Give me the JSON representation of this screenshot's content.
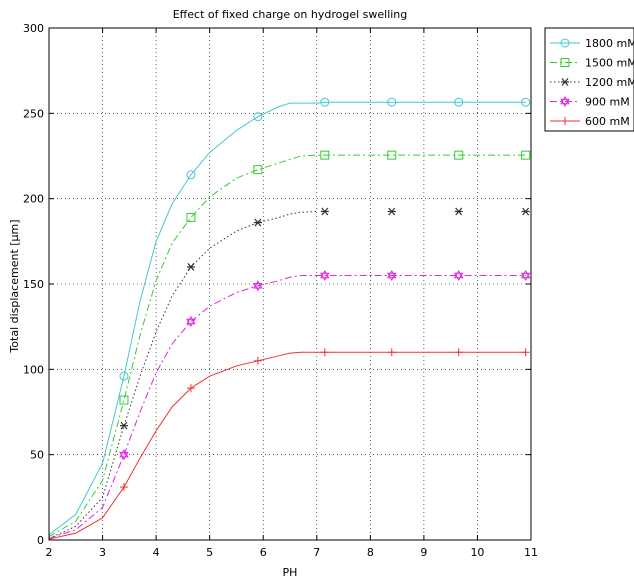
{
  "chart_data": {
    "type": "line",
    "title": "Effect of fixed charge on hydrogel swelling",
    "xlabel": "PH",
    "ylabel": "Total displacement [μm]",
    "xlim": [
      2,
      11
    ],
    "ylim": [
      0,
      300
    ],
    "xticks": [
      2,
      3,
      4,
      5,
      6,
      7,
      8,
      9,
      10,
      11
    ],
    "yticks": [
      0,
      50,
      100,
      150,
      200,
      250,
      300
    ],
    "grid": true,
    "grid_style": "dotted",
    "legend_position": "outside-top-right",
    "x": [
      2,
      2.5,
      3,
      3.4,
      3.7,
      4,
      4.3,
      4.65,
      5,
      5.5,
      5.9,
      6.3,
      6.5,
      6.7,
      7,
      7.15,
      8.4,
      9.65,
      10.9
    ],
    "markers_x": [
      3.4,
      4.65,
      5.9,
      7.15,
      8.4,
      9.65,
      10.9
    ],
    "series": [
      {
        "name": "1800 mM",
        "color": "#44c8cc",
        "line_style": "solid",
        "marker": "circle",
        "values": [
          3,
          15,
          45,
          96,
          140,
          175,
          197,
          214,
          227,
          240,
          248,
          254,
          256,
          256,
          256,
          256.5,
          256.5,
          256.5,
          256.5
        ]
      },
      {
        "name": "1500 mM",
        "color": "#33cc33",
        "line_style": "dashdot",
        "marker": "square",
        "values": [
          2,
          11,
          35,
          82,
          120,
          152,
          174,
          189,
          201,
          212,
          217,
          221,
          223,
          225,
          225.5,
          225.5,
          225.5,
          225.5,
          225.5
        ]
      },
      {
        "name": "1200 mM",
        "color": "#333333",
        "line_style": "dotted",
        "marker": "asterisk",
        "values": [
          1,
          8,
          25,
          67,
          96,
          122,
          143,
          160,
          171,
          181,
          186,
          189,
          191,
          192,
          192.5,
          192.5,
          192.5,
          192.5,
          192.5
        ]
      },
      {
        "name": "900 mM",
        "color": "#e024e0",
        "line_style": "dashdot",
        "marker": "hexagram",
        "values": [
          1,
          6,
          19,
          50,
          75,
          98,
          115,
          128,
          137,
          145,
          149,
          152,
          154,
          155,
          155,
          155,
          155,
          155,
          155
        ]
      },
      {
        "name": "600 mM",
        "color": "#ee3333",
        "line_style": "solid",
        "marker": "plus",
        "values": [
          0.5,
          4,
          13,
          31,
          48,
          64,
          78,
          89,
          96,
          102,
          105,
          108,
          109.5,
          110,
          110,
          110,
          110,
          110,
          110
        ]
      }
    ]
  }
}
